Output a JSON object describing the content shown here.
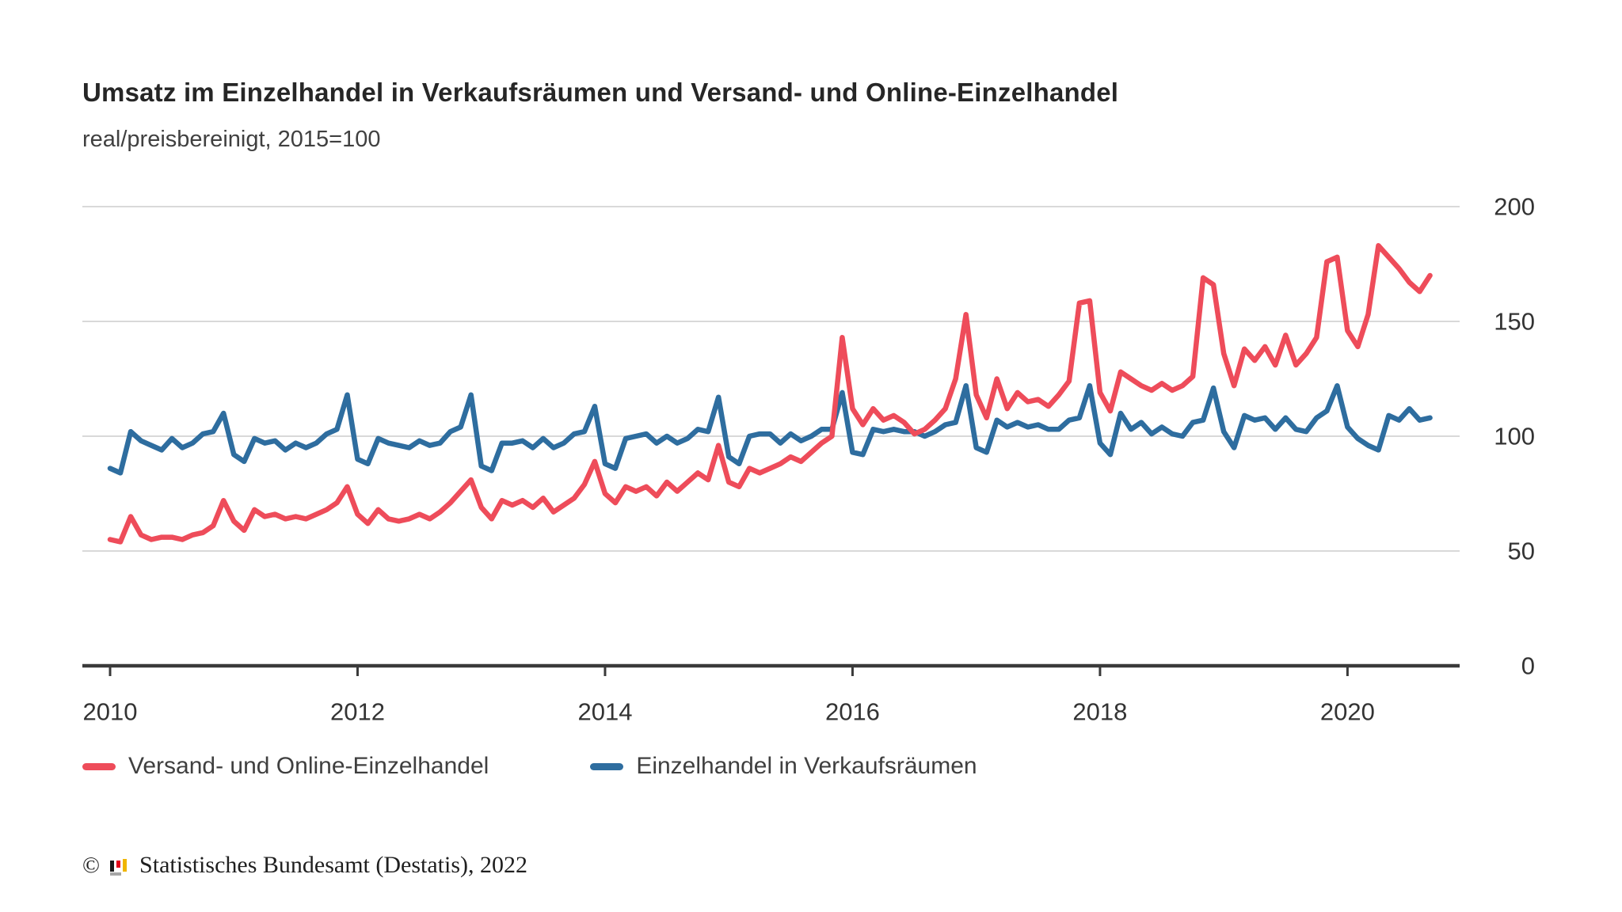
{
  "title": "Umsatz im Einzelhandel in Verkaufsräumen und Versand- und Online-Einzelhandel",
  "subtitle": "real/preisbereinigt, 2015=100",
  "legend": {
    "items": [
      {
        "label": "Versand- und Online-Einzelhandel",
        "color": "#ee4c5a"
      },
      {
        "label": "Einzelhandel in Verkaufsräumen",
        "color": "#2e6d9f"
      }
    ]
  },
  "footer": {
    "copyright": "©",
    "logo": "destatis-bar-chart-logo",
    "source": "Statistisches Bundesamt (Destatis), 2022"
  },
  "colors": {
    "online_series": "#ee4c5a",
    "store_series": "#2e6d9f",
    "gridline": "#d9d9d9",
    "axis_line": "#3a3a3a",
    "axis_text": "#333333"
  },
  "chart_data": {
    "type": "line",
    "title": "Umsatz im Einzelhandel in Verkaufsräumen und Versand- und Online-Einzelhandel",
    "subtitle": "real/preisbereinigt, 2015=100",
    "x_unit": "month",
    "x_start": "2010-01",
    "x_end": "2020-09",
    "x_tick_labels": [
      "2010",
      "2012",
      "2014",
      "2016",
      "2018",
      "2020"
    ],
    "x_tick_month_indices": [
      0,
      24,
      48,
      72,
      96,
      120
    ],
    "y_ticks": [
      0,
      50,
      100,
      150,
      200
    ],
    "ylim": [
      0,
      200
    ],
    "y_axis_side": "right",
    "grid": "horizontal",
    "legend_position": "bottom-left",
    "series": [
      {
        "name": "Einzelhandel in Verkaufsräumen",
        "color": "#2e6d9f",
        "values": [
          86,
          84,
          102,
          98,
          96,
          94,
          99,
          95,
          97,
          101,
          102,
          110,
          92,
          89,
          99,
          97,
          98,
          94,
          97,
          95,
          97,
          101,
          103,
          118,
          90,
          88,
          99,
          97,
          96,
          95,
          98,
          96,
          97,
          102,
          104,
          118,
          87,
          85,
          97,
          97,
          98,
          95,
          99,
          95,
          97,
          101,
          102,
          113,
          88,
          86,
          99,
          100,
          101,
          97,
          100,
          97,
          99,
          103,
          102,
          117,
          91,
          88,
          100,
          101,
          101,
          97,
          101,
          98,
          100,
          103,
          103,
          119,
          93,
          92,
          103,
          102,
          103,
          102,
          102,
          100,
          102,
          105,
          106,
          122,
          95,
          93,
          107,
          104,
          106,
          104,
          105,
          103,
          103,
          107,
          108,
          122,
          97,
          92,
          110,
          103,
          106,
          101,
          104,
          101,
          100,
          106,
          107,
          121,
          102,
          95,
          109,
          107,
          108,
          103,
          108,
          103,
          102,
          108,
          111,
          122,
          104,
          99,
          96,
          94,
          109,
          107,
          112,
          107,
          108
        ]
      },
      {
        "name": "Versand- und Online-Einzelhandel",
        "color": "#ee4c5a",
        "values": [
          55,
          54,
          65,
          57,
          55,
          56,
          56,
          55,
          57,
          58,
          61,
          72,
          63,
          59,
          68,
          65,
          66,
          64,
          65,
          64,
          66,
          68,
          71,
          78,
          66,
          62,
          68,
          64,
          63,
          64,
          66,
          64,
          67,
          71,
          76,
          81,
          69,
          64,
          72,
          70,
          72,
          69,
          73,
          67,
          70,
          73,
          79,
          89,
          75,
          71,
          78,
          76,
          78,
          74,
          80,
          76,
          80,
          84,
          81,
          96,
          80,
          78,
          86,
          84,
          86,
          88,
          91,
          89,
          93,
          97,
          100,
          143,
          112,
          105,
          112,
          107,
          109,
          106,
          101,
          103,
          107,
          112,
          125,
          153,
          118,
          108,
          125,
          112,
          119,
          115,
          116,
          113,
          118,
          124,
          158,
          159,
          119,
          111,
          128,
          125,
          122,
          120,
          123,
          120,
          122,
          126,
          169,
          166,
          136,
          122,
          138,
          133,
          139,
          131,
          144,
          131,
          136,
          143,
          176,
          178,
          146,
          139,
          153,
          183,
          178,
          173,
          167,
          163,
          170
        ]
      }
    ]
  }
}
